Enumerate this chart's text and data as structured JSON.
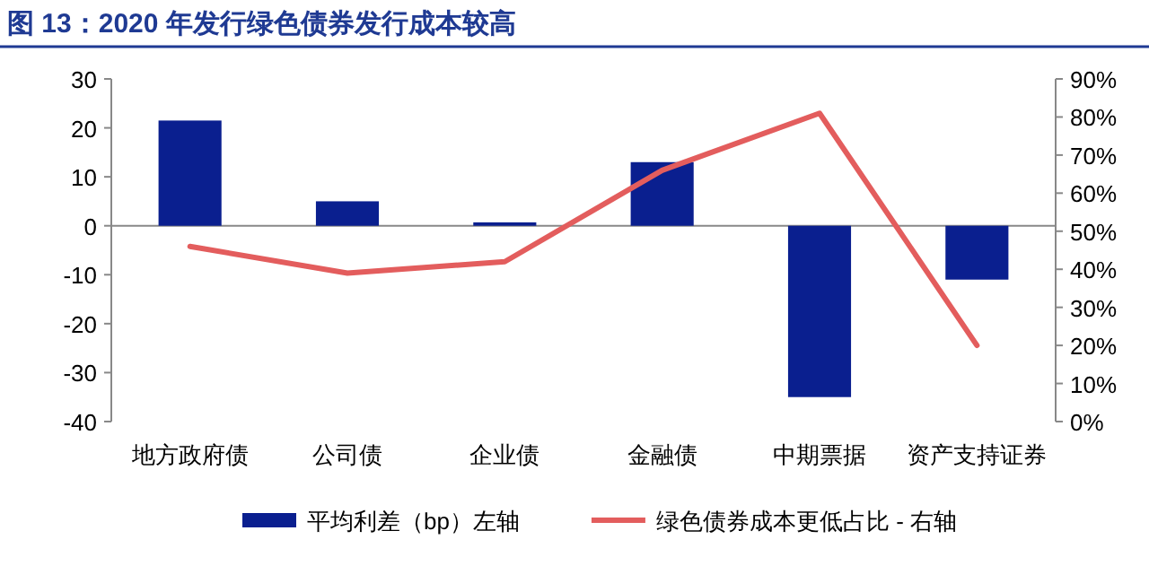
{
  "chart_data": {
    "type": "bar",
    "title": "图 13：2020 年发行绿色债券发行成本较高",
    "categories": [
      "地方政府债",
      "公司债",
      "企业债",
      "金融债",
      "中期票据",
      "资产支持证券"
    ],
    "series": [
      {
        "name": "平均利差（bp）左轴",
        "color": "#0a1f8f",
        "values": [
          21.5,
          5,
          0.7,
          13,
          -35,
          -11
        ]
      },
      {
        "name": "绿色债券成本更低占比 - 右轴",
        "type": "line",
        "axis": "y2",
        "color": "#e35d5d",
        "values": [
          46,
          39,
          42,
          66,
          81,
          20
        ]
      }
    ],
    "ylim": [
      -40,
      30
    ],
    "yticks": [
      -40,
      -30,
      -20,
      -10,
      0,
      10,
      20,
      30
    ],
    "y2lim": [
      0,
      90
    ],
    "y2ticks": [
      {
        "value": 0,
        "label": "0%"
      },
      {
        "value": 10,
        "label": "10%"
      },
      {
        "value": 20,
        "label": "20%"
      },
      {
        "value": 30,
        "label": "30%"
      },
      {
        "value": 40,
        "label": "40%"
      },
      {
        "value": 50,
        "label": "50%"
      },
      {
        "value": 60,
        "label": "60%"
      },
      {
        "value": 70,
        "label": "70%"
      },
      {
        "value": 80,
        "label": "80%"
      },
      {
        "value": 90,
        "label": "90%"
      }
    ],
    "legend": "bottom"
  }
}
